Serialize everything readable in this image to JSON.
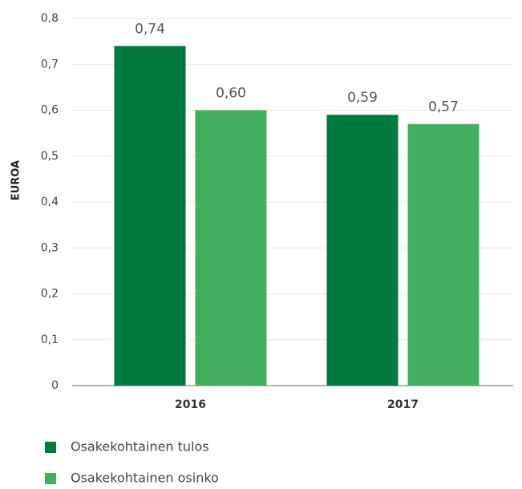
{
  "chart_data": {
    "type": "bar",
    "y_label": "EUROA",
    "categories": [
      "2016",
      "2017"
    ],
    "series": [
      {
        "name": "Osakekohtainen tulos",
        "color": "#007a3d",
        "values": [
          0.74,
          0.59
        ],
        "value_labels": [
          "0,74",
          "0,59"
        ]
      },
      {
        "name": "Osakekohtainen osinko",
        "color": "#43b060",
        "values": [
          0.6,
          0.57
        ],
        "value_labels": [
          "0,60",
          "0,57"
        ]
      }
    ],
    "ylim": [
      0,
      0.8
    ],
    "yticks": [
      0,
      {
        "value": 0.1,
        "label": "0,1"
      },
      {
        "value": 0.2,
        "label": "0,2"
      },
      {
        "value": 0.3,
        "label": "0,3"
      },
      {
        "value": 0.4,
        "label": "0,4"
      },
      {
        "value": 0.5,
        "label": "0,5"
      },
      {
        "value": 0.6,
        "label": "0,6"
      },
      {
        "value": 0.7,
        "label": "0,7"
      },
      {
        "value": 0.8,
        "label": "0,8"
      }
    ],
    "grid": true,
    "legend": "bottom-left"
  }
}
